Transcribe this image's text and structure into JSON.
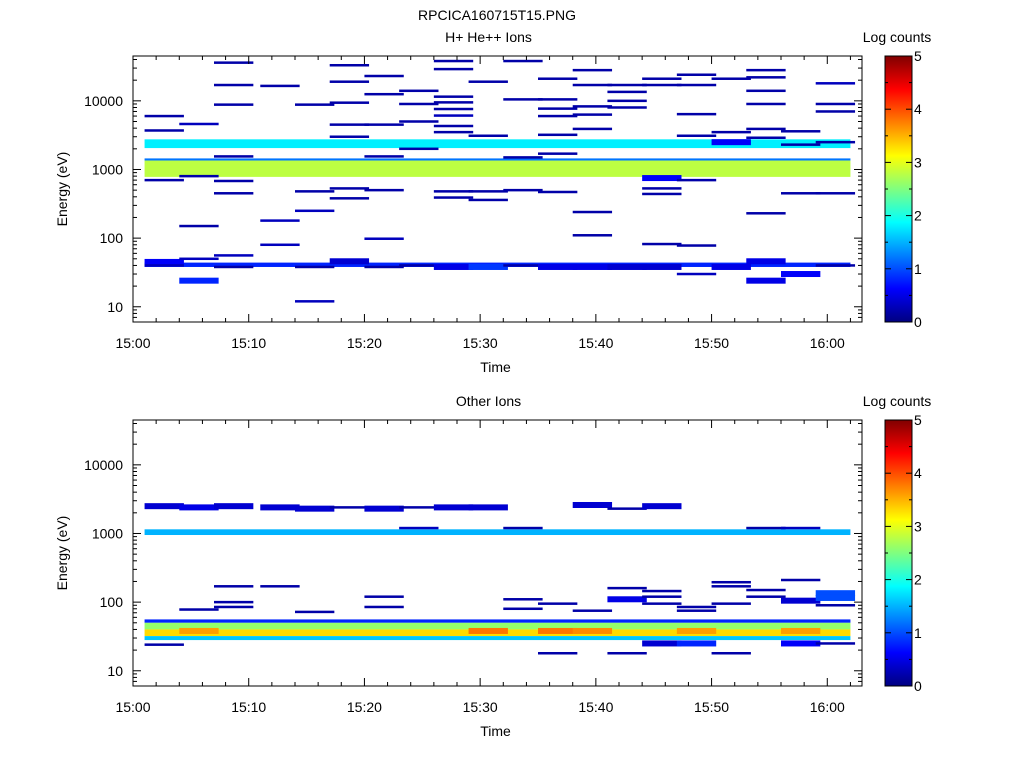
{
  "figure_title": "RPCICA160715T15.PNG",
  "chart_data": [
    {
      "type": "heatmap",
      "title": "H+ He++ Ions",
      "xlabel": "Time",
      "ylabel": "Energy (eV)",
      "x_scale": "time",
      "x_range": [
        "15:00",
        "16:03"
      ],
      "x_ticks": [
        "15:00",
        "15:10",
        "15:20",
        "15:30",
        "15:40",
        "15:50",
        "16:00"
      ],
      "y_scale": "log",
      "y_range": [
        6,
        45000
      ],
      "y_ticks": [
        10,
        100,
        1000,
        10000
      ],
      "y_tick_labels": [
        "10",
        "100",
        "1000",
        "10000"
      ],
      "colorbar": {
        "label": "Log counts",
        "range": [
          0,
          5
        ],
        "ticks": [
          "0",
          "1",
          "2",
          "3",
          "4",
          "5"
        ],
        "colormap": "jet"
      },
      "bands": [
        {
          "from": "15:01",
          "to": "16:02",
          "e_low": 2050,
          "e_high": 2750,
          "level": 1.8
        },
        {
          "from": "15:01",
          "to": "16:02",
          "e_low": 1350,
          "e_high": 1450,
          "level": 1.2
        },
        {
          "from": "15:01",
          "to": "16:02",
          "e_low": 780,
          "e_high": 1350,
          "level": 2.8
        },
        {
          "from": "15:01",
          "to": "16:02",
          "e_low": 38,
          "e_high": 44,
          "level": 0.8
        }
      ],
      "cells": [
        {
          "t": "15:01",
          "e": 6000,
          "level": 0.2
        },
        {
          "t": "15:01",
          "e": 3700,
          "level": 0.2
        },
        {
          "t": "15:01",
          "e": 700,
          "level": 0.2
        },
        {
          "t": "15:01",
          "e": 45,
          "level": 0.6
        },
        {
          "t": "15:01",
          "e": 40,
          "level": 0.3
        },
        {
          "t": "15:04",
          "e": 4600,
          "level": 0.3
        },
        {
          "t": "15:04",
          "e": 800,
          "level": 0.2
        },
        {
          "t": "15:04",
          "e": 150,
          "level": 0.2
        },
        {
          "t": "15:04",
          "e": 24,
          "level": 0.8
        },
        {
          "t": "15:04",
          "e": 50,
          "level": 0.3
        },
        {
          "t": "15:07",
          "e": 36000,
          "level": 0.2
        },
        {
          "t": "15:07",
          "e": 17000,
          "level": 0.2
        },
        {
          "t": "15:07",
          "e": 8800,
          "level": 0.2
        },
        {
          "t": "15:07",
          "e": 1550,
          "level": 0.2
        },
        {
          "t": "15:07",
          "e": 680,
          "level": 0.2
        },
        {
          "t": "15:07",
          "e": 450,
          "level": 0.2
        },
        {
          "t": "15:07",
          "e": 38,
          "level": 0.2
        },
        {
          "t": "15:07",
          "e": 56,
          "level": 0.3
        },
        {
          "t": "15:11",
          "e": 16500,
          "level": 0.2
        },
        {
          "t": "15:11",
          "e": 180,
          "level": 0.3
        },
        {
          "t": "15:11",
          "e": 80,
          "level": 0.3
        },
        {
          "t": "15:14",
          "e": 8800,
          "level": 0.2
        },
        {
          "t": "15:14",
          "e": 480,
          "level": 0.2
        },
        {
          "t": "15:14",
          "e": 250,
          "level": 0.3
        },
        {
          "t": "15:14",
          "e": 12,
          "level": 0.3
        },
        {
          "t": "15:14",
          "e": 38,
          "level": 0.2
        },
        {
          "t": "15:17",
          "e": 33000,
          "level": 0.2
        },
        {
          "t": "15:17",
          "e": 19000,
          "level": 0.2
        },
        {
          "t": "15:17",
          "e": 9400,
          "level": 0.2
        },
        {
          "t": "15:17",
          "e": 4500,
          "level": 0.2
        },
        {
          "t": "15:17",
          "e": 3000,
          "level": 0.2
        },
        {
          "t": "15:17",
          "e": 530,
          "level": 0.2
        },
        {
          "t": "15:17",
          "e": 380,
          "level": 0.2
        },
        {
          "t": "15:17",
          "e": 46,
          "level": 0.4
        },
        {
          "t": "15:20",
          "e": 23000,
          "level": 0.2
        },
        {
          "t": "15:20",
          "e": 12500,
          "level": 0.2
        },
        {
          "t": "15:20",
          "e": 4500,
          "level": 0.2
        },
        {
          "t": "15:20",
          "e": 1550,
          "level": 0.2
        },
        {
          "t": "15:20",
          "e": 500,
          "level": 0.2
        },
        {
          "t": "15:20",
          "e": 98,
          "level": 0.3
        },
        {
          "t": "15:20",
          "e": 38,
          "level": 0.2
        },
        {
          "t": "15:23",
          "e": 14000,
          "level": 0.2
        },
        {
          "t": "15:23",
          "e": 9000,
          "level": 0.2
        },
        {
          "t": "15:23",
          "e": 5000,
          "level": 0.2
        },
        {
          "t": "15:23",
          "e": 2000,
          "level": 0.2
        },
        {
          "t": "15:23",
          "e": 40,
          "level": 0.2
        },
        {
          "t": "15:26",
          "e": 38000,
          "level": 0.2
        },
        {
          "t": "15:26",
          "e": 29000,
          "level": 0.2
        },
        {
          "t": "15:26",
          "e": 11500,
          "level": 0.2
        },
        {
          "t": "15:26",
          "e": 9500,
          "level": 0.2
        },
        {
          "t": "15:26",
          "e": 7600,
          "level": 0.2
        },
        {
          "t": "15:26",
          "e": 6100,
          "level": 0.3
        },
        {
          "t": "15:26",
          "e": 4300,
          "level": 0.2
        },
        {
          "t": "15:26",
          "e": 3500,
          "level": 0.2
        },
        {
          "t": "15:26",
          "e": 480,
          "level": 0.2
        },
        {
          "t": "15:26",
          "e": 390,
          "level": 0.2
        },
        {
          "t": "15:26",
          "e": 38,
          "level": 0.5
        },
        {
          "t": "15:29",
          "e": 19000,
          "level": 0.2
        },
        {
          "t": "15:29",
          "e": 3100,
          "level": 0.2
        },
        {
          "t": "15:29",
          "e": 480,
          "level": 0.2
        },
        {
          "t": "15:29",
          "e": 360,
          "level": 0.2
        },
        {
          "t": "15:29",
          "e": 38,
          "level": 0.9
        },
        {
          "t": "15:32",
          "e": 38000,
          "level": 0.2
        },
        {
          "t": "15:32",
          "e": 10500,
          "level": 0.2
        },
        {
          "t": "15:32",
          "e": 1500,
          "level": 0.2
        },
        {
          "t": "15:32",
          "e": 500,
          "level": 0.2
        },
        {
          "t": "15:32",
          "e": 40,
          "level": 0.2
        },
        {
          "t": "15:35",
          "e": 21000,
          "level": 0.2
        },
        {
          "t": "15:35",
          "e": 10500,
          "level": 0.2
        },
        {
          "t": "15:35",
          "e": 7700,
          "level": 0.2
        },
        {
          "t": "15:35",
          "e": 6000,
          "level": 0.2
        },
        {
          "t": "15:35",
          "e": 3200,
          "level": 0.2
        },
        {
          "t": "15:35",
          "e": 1700,
          "level": 0.2
        },
        {
          "t": "15:35",
          "e": 470,
          "level": 0.2
        },
        {
          "t": "15:35",
          "e": 38,
          "level": 0.5
        },
        {
          "t": "15:38",
          "e": 28000,
          "level": 0.2
        },
        {
          "t": "15:38",
          "e": 17000,
          "level": 0.2
        },
        {
          "t": "15:38",
          "e": 8300,
          "level": 0.2
        },
        {
          "t": "15:38",
          "e": 6300,
          "level": 0.2
        },
        {
          "t": "15:38",
          "e": 3900,
          "level": 0.2
        },
        {
          "t": "15:38",
          "e": 240,
          "level": 0.2
        },
        {
          "t": "15:38",
          "e": 110,
          "level": 0.2
        },
        {
          "t": "15:38",
          "e": 38,
          "level": 0.5
        },
        {
          "t": "15:41",
          "e": 17000,
          "level": 0.2
        },
        {
          "t": "15:41",
          "e": 13500,
          "level": 0.2
        },
        {
          "t": "15:41",
          "e": 10000,
          "level": 0.2
        },
        {
          "t": "15:41",
          "e": 8000,
          "level": 0.2
        },
        {
          "t": "15:41",
          "e": 38,
          "level": 0.4
        },
        {
          "t": "15:44",
          "e": 21000,
          "level": 0.2
        },
        {
          "t": "15:44",
          "e": 17000,
          "level": 0.2
        },
        {
          "t": "15:44",
          "e": 750,
          "level": 0.6
        },
        {
          "t": "15:44",
          "e": 530,
          "level": 0.2
        },
        {
          "t": "15:44",
          "e": 440,
          "level": 0.2
        },
        {
          "t": "15:44",
          "e": 82,
          "level": 0.2
        },
        {
          "t": "15:44",
          "e": 38,
          "level": 0.4
        },
        {
          "t": "15:47",
          "e": 24000,
          "level": 0.2
        },
        {
          "t": "15:47",
          "e": 17000,
          "level": 0.2
        },
        {
          "t": "15:47",
          "e": 6400,
          "level": 0.2
        },
        {
          "t": "15:47",
          "e": 3100,
          "level": 0.2
        },
        {
          "t": "15:47",
          "e": 700,
          "level": 0.2
        },
        {
          "t": "15:47",
          "e": 78,
          "level": 0.2
        },
        {
          "t": "15:47",
          "e": 30,
          "level": 0.3
        },
        {
          "t": "15:50",
          "e": 21000,
          "level": 0.2
        },
        {
          "t": "15:50",
          "e": 3500,
          "level": 0.2
        },
        {
          "t": "15:50",
          "e": 2500,
          "level": 0.6
        },
        {
          "t": "15:50",
          "e": 38,
          "level": 0.5
        },
        {
          "t": "15:53",
          "e": 28000,
          "level": 0.2
        },
        {
          "t": "15:53",
          "e": 22000,
          "level": 0.2
        },
        {
          "t": "15:53",
          "e": 14000,
          "level": 0.2
        },
        {
          "t": "15:53",
          "e": 9000,
          "level": 0.2
        },
        {
          "t": "15:53",
          "e": 3900,
          "level": 0.2
        },
        {
          "t": "15:53",
          "e": 2900,
          "level": 0.2
        },
        {
          "t": "15:53",
          "e": 230,
          "level": 0.2
        },
        {
          "t": "15:53",
          "e": 24,
          "level": 0.5
        },
        {
          "t": "15:53",
          "e": 46,
          "level": 0.5
        },
        {
          "t": "15:56",
          "e": 3600,
          "level": 0.2
        },
        {
          "t": "15:56",
          "e": 2300,
          "level": 0.2
        },
        {
          "t": "15:56",
          "e": 450,
          "level": 0.2
        },
        {
          "t": "15:56",
          "e": 30,
          "level": 0.6
        },
        {
          "t": "15:59",
          "e": 18000,
          "level": 0.3
        },
        {
          "t": "15:59",
          "e": 9000,
          "level": 0.2
        },
        {
          "t": "15:59",
          "e": 7000,
          "level": 0.2
        },
        {
          "t": "15:59",
          "e": 2500,
          "level": 0.2
        },
        {
          "t": "15:59",
          "e": 450,
          "level": 0.2
        },
        {
          "t": "15:59",
          "e": 40,
          "level": 0.2
        }
      ]
    },
    {
      "type": "heatmap",
      "title": "Other Ions",
      "xlabel": "Time",
      "ylabel": "Energy (eV)",
      "x_scale": "time",
      "x_range": [
        "15:00",
        "16:03"
      ],
      "x_ticks": [
        "15:00",
        "15:10",
        "15:20",
        "15:30",
        "15:40",
        "15:50",
        "16:00"
      ],
      "y_scale": "log",
      "y_range": [
        6,
        45000
      ],
      "y_ticks": [
        10,
        100,
        1000,
        10000
      ],
      "y_tick_labels": [
        "10",
        "100",
        "1000",
        "10000"
      ],
      "colorbar": {
        "label": "Log counts",
        "range": [
          0,
          5
        ],
        "ticks": [
          "0",
          "1",
          "2",
          "3",
          "4",
          "5"
        ],
        "colormap": "jet"
      },
      "bands": [
        {
          "from": "15:01",
          "to": "16:02",
          "e_low": 950,
          "e_high": 1150,
          "level": 1.5
        },
        {
          "from": "15:01",
          "to": "16:02",
          "e_low": 50,
          "e_high": 56,
          "level": 0.8
        },
        {
          "from": "15:01",
          "to": "16:02",
          "e_low": 40,
          "e_high": 50,
          "level": 2.6
        },
        {
          "from": "15:01",
          "to": "16:02",
          "e_low": 32,
          "e_high": 40,
          "level": 3.3
        },
        {
          "from": "15:01",
          "to": "16:02",
          "e_low": 28,
          "e_high": 32,
          "level": 1.6
        }
      ],
      "cells": [
        {
          "t": "15:01",
          "e": 2500,
          "level": 0.4
        },
        {
          "t": "15:01",
          "e": 24,
          "level": 0.2
        },
        {
          "t": "15:04",
          "e": 2400,
          "level": 0.5
        },
        {
          "t": "15:04",
          "e": 78,
          "level": 0.2
        },
        {
          "t": "15:04",
          "e": 38,
          "level": 3.6
        },
        {
          "t": "15:07",
          "e": 2500,
          "level": 0.4
        },
        {
          "t": "15:07",
          "e": 170,
          "level": 0.2
        },
        {
          "t": "15:07",
          "e": 100,
          "level": 0.2
        },
        {
          "t": "15:07",
          "e": 85,
          "level": 0.2
        },
        {
          "t": "15:11",
          "e": 2400,
          "level": 0.4
        },
        {
          "t": "15:11",
          "e": 170,
          "level": 0.2
        },
        {
          "t": "15:14",
          "e": 2300,
          "level": 0.4
        },
        {
          "t": "15:14",
          "e": 72,
          "level": 0.2
        },
        {
          "t": "15:17",
          "e": 2400,
          "level": 0.2
        },
        {
          "t": "15:20",
          "e": 2300,
          "level": 0.4
        },
        {
          "t": "15:20",
          "e": 120,
          "level": 0.2
        },
        {
          "t": "15:20",
          "e": 85,
          "level": 0.2
        },
        {
          "t": "15:23",
          "e": 1200,
          "level": 0.3
        },
        {
          "t": "15:23",
          "e": 2400,
          "level": 0.2
        },
        {
          "t": "15:26",
          "e": 2400,
          "level": 0.4
        },
        {
          "t": "15:29",
          "e": 2400,
          "level": 0.4
        },
        {
          "t": "15:29",
          "e": 38,
          "level": 3.8
        },
        {
          "t": "15:32",
          "e": 1200,
          "level": 0.2
        },
        {
          "t": "15:32",
          "e": 110,
          "level": 0.2
        },
        {
          "t": "15:32",
          "e": 80,
          "level": 0.2
        },
        {
          "t": "15:35",
          "e": 95,
          "level": 0.2
        },
        {
          "t": "15:35",
          "e": 18,
          "level": 0.2
        },
        {
          "t": "15:35",
          "e": 38,
          "level": 3.8
        },
        {
          "t": "15:38",
          "e": 2600,
          "level": 0.4
        },
        {
          "t": "15:38",
          "e": 75,
          "level": 0.2
        },
        {
          "t": "15:38",
          "e": 38,
          "level": 3.7
        },
        {
          "t": "15:41",
          "e": 2300,
          "level": 0.2
        },
        {
          "t": "15:41",
          "e": 160,
          "level": 0.2
        },
        {
          "t": "15:41",
          "e": 110,
          "level": 0.5
        },
        {
          "t": "15:41",
          "e": 18,
          "level": 0.2
        },
        {
          "t": "15:44",
          "e": 2500,
          "level": 0.4
        },
        {
          "t": "15:44",
          "e": 145,
          "level": 0.2
        },
        {
          "t": "15:44",
          "e": 120,
          "level": 0.2
        },
        {
          "t": "15:44",
          "e": 95,
          "level": 0.2
        },
        {
          "t": "15:44",
          "e": 25,
          "level": 0.4
        },
        {
          "t": "15:47",
          "e": 85,
          "level": 0.2
        },
        {
          "t": "15:47",
          "e": 75,
          "level": 0.2
        },
        {
          "t": "15:47",
          "e": 38,
          "level": 3.6
        },
        {
          "t": "15:47",
          "e": 25,
          "level": 0.8
        },
        {
          "t": "15:50",
          "e": 195,
          "level": 0.2
        },
        {
          "t": "15:50",
          "e": 170,
          "level": 0.2
        },
        {
          "t": "15:50",
          "e": 95,
          "level": 0.2
        },
        {
          "t": "15:50",
          "e": 18,
          "level": 0.2
        },
        {
          "t": "15:53",
          "e": 1200,
          "level": 0.2
        },
        {
          "t": "15:53",
          "e": 150,
          "level": 0.2
        },
        {
          "t": "15:53",
          "e": 120,
          "level": 0.2
        },
        {
          "t": "15:56",
          "e": 1200,
          "level": 0.3
        },
        {
          "t": "15:56",
          "e": 210,
          "level": 0.2
        },
        {
          "t": "15:56",
          "e": 105,
          "level": 0.4
        },
        {
          "t": "15:56",
          "e": 38,
          "level": 3.6
        },
        {
          "t": "15:56",
          "e": 25,
          "level": 0.6
        },
        {
          "t": "15:59",
          "e": 135,
          "level": 1.0
        },
        {
          "t": "15:59",
          "e": 115,
          "level": 1.0
        },
        {
          "t": "15:59",
          "e": 90,
          "level": 0.2
        },
        {
          "t": "15:59",
          "e": 25,
          "level": 0.2
        }
      ]
    }
  ]
}
